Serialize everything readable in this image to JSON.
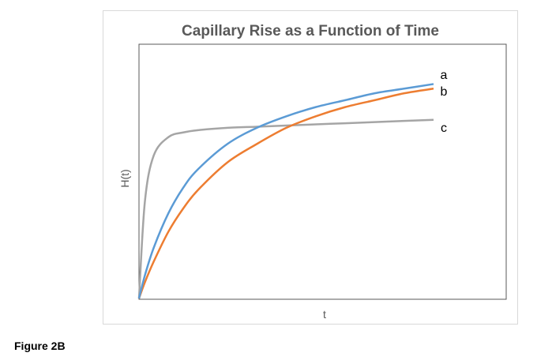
{
  "figure_caption": "Figure 2B",
  "chart_data": {
    "type": "line",
    "title": "Capillary Rise as a Function of Time",
    "xlabel": "t",
    "ylabel": "H(t)",
    "xlim": [
      0,
      1
    ],
    "ylim": [
      0,
      1
    ],
    "grid": false,
    "legend": "inline labels at line ends",
    "x": [
      0,
      0.02,
      0.05,
      0.1,
      0.15,
      0.2,
      0.3,
      0.4,
      0.5,
      0.6,
      0.7,
      0.8,
      0.9,
      1.0
    ],
    "series": [
      {
        "name": "a",
        "color": "#5b9bd5",
        "values": [
          0,
          0.1,
          0.22,
          0.37,
          0.48,
          0.56,
          0.67,
          0.74,
          0.79,
          0.83,
          0.86,
          0.89,
          0.91,
          0.93
        ]
      },
      {
        "name": "b",
        "color": "#ed7d31",
        "values": [
          0,
          0.07,
          0.16,
          0.29,
          0.39,
          0.47,
          0.59,
          0.67,
          0.74,
          0.79,
          0.83,
          0.86,
          0.89,
          0.91
        ]
      },
      {
        "name": "c",
        "color": "#a5a5a5",
        "values": [
          0,
          0.42,
          0.62,
          0.7,
          0.72,
          0.73,
          0.74,
          0.745,
          0.75,
          0.755,
          0.76,
          0.765,
          0.77,
          0.775
        ]
      }
    ]
  }
}
